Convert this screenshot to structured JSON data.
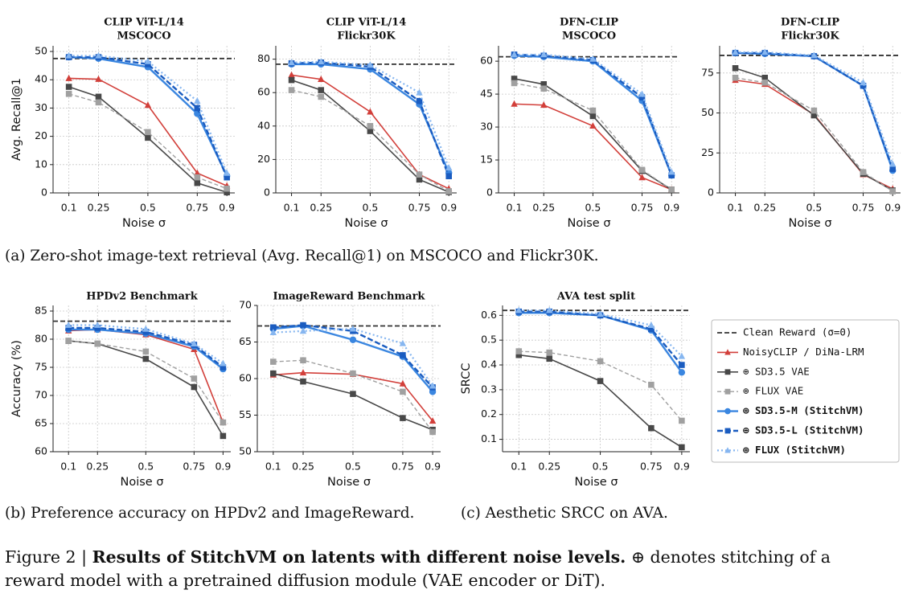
{
  "chart_data": [
    {
      "type": "line",
      "title": "CLIP ViT-L/14",
      "subtitle": "MSCOCO",
      "y_label": "Avg. Recall@1",
      "x_label": "Noise σ",
      "x": [
        0.1,
        0.25,
        0.5,
        0.75,
        0.9
      ],
      "xlim": [
        0.02,
        0.94
      ],
      "xticks": [
        0.1,
        0.25,
        0.5,
        0.75,
        0.9
      ],
      "ylim": [
        0,
        52
      ],
      "yticks": [
        0,
        10,
        20,
        30,
        40,
        50
      ],
      "grid": true,
      "reference": 47.5,
      "series": [
        {
          "values": [
            40.5,
            40.2,
            31,
            7,
            2.5
          ]
        },
        {
          "values": [
            37.5,
            34,
            19.5,
            3.5,
            0.2
          ]
        },
        {
          "values": [
            35,
            32,
            21.5,
            5.5,
            1.5
          ]
        },
        {
          "values": [
            48,
            47.5,
            44.5,
            28,
            6
          ]
        },
        {
          "values": [
            48,
            48,
            45.5,
            30,
            5.5
          ]
        },
        {
          "values": [
            48.5,
            48.5,
            46.5,
            32.5,
            7
          ]
        }
      ]
    },
    {
      "type": "line",
      "title": "CLIP ViT-L/14",
      "subtitle": "Flickr30K",
      "x_label": "Noise σ",
      "x": [
        0.1,
        0.25,
        0.5,
        0.75,
        0.9
      ],
      "xlim": [
        0.02,
        0.94
      ],
      "xticks": [
        0.1,
        0.25,
        0.5,
        0.75,
        0.9
      ],
      "ylim": [
        0,
        88
      ],
      "yticks": [
        0,
        20,
        40,
        60,
        80
      ],
      "grid": true,
      "reference": 77,
      "series": [
        {
          "values": [
            70.5,
            68,
            48.5,
            11,
            2.5
          ]
        },
        {
          "values": [
            67.5,
            61.5,
            37,
            8,
            0.5
          ]
        },
        {
          "values": [
            61.5,
            57.5,
            40,
            11,
            1
          ]
        },
        {
          "values": [
            77,
            77,
            74,
            53,
            12
          ]
        },
        {
          "values": [
            77.5,
            78,
            75.5,
            55,
            10
          ]
        },
        {
          "values": [
            78,
            78.5,
            76.5,
            60,
            15
          ]
        }
      ]
    },
    {
      "type": "line",
      "title": "DFN-CLIP",
      "subtitle": "MSCOCO",
      "x_label": "Noise σ",
      "x": [
        0.1,
        0.25,
        0.5,
        0.75,
        0.9
      ],
      "xlim": [
        0.02,
        0.94
      ],
      "xticks": [
        0.1,
        0.25,
        0.5,
        0.75,
        0.9
      ],
      "ylim": [
        0,
        67
      ],
      "yticks": [
        0,
        15,
        30,
        45,
        60
      ],
      "grid": true,
      "reference": 62,
      "series": [
        {
          "values": [
            40.5,
            40,
            30.5,
            7,
            1.5
          ]
        },
        {
          "values": [
            52,
            49.5,
            35,
            10,
            1.5
          ]
        },
        {
          "values": [
            50,
            47.5,
            37.5,
            10.5,
            1.5
          ]
        },
        {
          "values": [
            62.5,
            62,
            60,
            42,
            8
          ]
        },
        {
          "values": [
            63,
            62.5,
            60.5,
            43.5,
            8
          ]
        },
        {
          "values": [
            63,
            63,
            61,
            45,
            9.5
          ]
        }
      ]
    },
    {
      "type": "line",
      "title": "DFN-CLIP",
      "subtitle": "Flickr30K",
      "x_label": "Noise σ",
      "x": [
        0.1,
        0.25,
        0.5,
        0.75,
        0.9
      ],
      "xlim": [
        0.02,
        0.94
      ],
      "xticks": [
        0.1,
        0.25,
        0.5,
        0.75,
        0.9
      ],
      "ylim": [
        0,
        92
      ],
      "yticks": [
        0,
        25,
        50,
        75
      ],
      "grid": true,
      "reference": 86,
      "series": [
        {
          "values": [
            70.5,
            68,
            49,
            11.5,
            2.5
          ]
        },
        {
          "values": [
            78,
            72,
            48.5,
            12,
            1.5
          ]
        },
        {
          "values": [
            72,
            69,
            51.5,
            13,
            1
          ]
        },
        {
          "values": [
            87.5,
            87,
            85.5,
            67,
            14
          ]
        },
        {
          "values": [
            87.5,
            87.5,
            85.5,
            67,
            15
          ]
        },
        {
          "values": [
            88,
            88,
            86,
            69,
            18
          ]
        }
      ]
    },
    {
      "type": "line",
      "title": "HPDv2 Benchmark",
      "y_label": "Accuracy (%)",
      "x_label": "Noise σ",
      "x": [
        0.1,
        0.25,
        0.5,
        0.75,
        0.9
      ],
      "xlim": [
        0.02,
        0.94
      ],
      "xticks": [
        0.1,
        0.25,
        0.5,
        0.75,
        0.9
      ],
      "ylim": [
        60,
        86
      ],
      "yticks": [
        60,
        65,
        70,
        75,
        80,
        85
      ],
      "grid": true,
      "reference": 83.2,
      "series": [
        {
          "values": [
            81.5,
            81.7,
            80.8,
            78.2,
            65.2
          ]
        },
        {
          "values": [
            79.7,
            79.2,
            76.5,
            71.5,
            62.8
          ]
        },
        {
          "values": [
            79.7,
            79.2,
            77.8,
            73,
            65.2
          ]
        },
        {
          "values": [
            81.7,
            81.7,
            81,
            78.7,
            74.7
          ]
        },
        {
          "values": [
            82,
            82,
            81.3,
            79,
            75
          ]
        },
        {
          "values": [
            82.5,
            82.5,
            81.8,
            79.2,
            75.7
          ]
        }
      ]
    },
    {
      "type": "line",
      "title": "ImageReward Benchmark",
      "x_label": "Noise σ",
      "x": [
        0.1,
        0.25,
        0.5,
        0.75,
        0.9
      ],
      "xlim": [
        0.02,
        0.94
      ],
      "xticks": [
        0.1,
        0.25,
        0.5,
        0.75,
        0.9
      ],
      "ylim": [
        50,
        70
      ],
      "yticks": [
        50,
        55,
        60,
        65,
        70
      ],
      "grid": true,
      "reference": 67.2,
      "series": [
        {
          "values": [
            60.5,
            60.8,
            60.6,
            59.3,
            54.2
          ]
        },
        {
          "values": [
            60.7,
            59.6,
            57.9,
            54.6,
            53
          ]
        },
        {
          "values": [
            62.3,
            62.5,
            60.7,
            58.2,
            52.7
          ]
        },
        {
          "values": [
            66.8,
            67.2,
            65.3,
            63,
            58.2
          ]
        },
        {
          "values": [
            67,
            67.3,
            66.5,
            63.2,
            58.8
          ]
        },
        {
          "values": [
            66.3,
            66.5,
            66.8,
            64.8,
            59
          ]
        }
      ]
    },
    {
      "type": "line",
      "title": "AVA test split",
      "y_label": "SRCC",
      "x_label": "Noise σ",
      "x": [
        0.1,
        0.25,
        0.5,
        0.75,
        0.9
      ],
      "xlim": [
        0.02,
        0.94
      ],
      "xticks": [
        0.1,
        0.25,
        0.5,
        0.75,
        0.9
      ],
      "ylim": [
        0.05,
        0.64
      ],
      "yticks": [
        0.1,
        0.2,
        0.3,
        0.4,
        0.5,
        0.6
      ],
      "grid": true,
      "reference": 0.62,
      "series": [
        {
          "values": [
            null,
            null,
            null,
            null,
            null
          ]
        },
        {
          "values": [
            0.44,
            0.425,
            0.335,
            0.145,
            0.068
          ]
        },
        {
          "values": [
            0.455,
            0.45,
            0.415,
            0.32,
            0.175
          ]
        },
        {
          "values": [
            0.61,
            0.61,
            0.6,
            0.54,
            0.37
          ]
        },
        {
          "values": [
            0.615,
            0.615,
            0.6,
            0.545,
            0.4
          ]
        },
        {
          "values": [
            0.62,
            0.62,
            0.605,
            0.56,
            0.435
          ]
        }
      ]
    }
  ],
  "legend": {
    "reference": {
      "name": "Clean Reward (σ=0)",
      "color": "#333333"
    },
    "series": [
      {
        "name": "NoisyCLIP / DiNa-LRM",
        "color": "#d23f3a"
      },
      {
        "name": "⊕ SD3.5 VAE",
        "color": "#484848"
      },
      {
        "name": "⊕ FLUX VAE",
        "color": "#a0a0a0"
      },
      {
        "name": "⊕ SD3.5-M (StitchVM)",
        "color": "#3a86e0"
      },
      {
        "name": "⊕ SD3.5-L (StitchVM)",
        "color": "#1a5cc0"
      },
      {
        "name": "⊕ FLUX (StitchVM)",
        "color": "#86b6f0"
      }
    ]
  },
  "captions": {
    "a": "(a) Zero-shot image-text retrieval (Avg. Recall@1) on MSCOCO and Flickr30K.",
    "b": "(b) Preference accuracy on HPDv2 and ImageReward.",
    "c": "(c) Aesthetic SRCC on AVA.",
    "figure_label": "Figure 2 |",
    "figure_bold": "Results of StitchVM on latents with different noise levels.",
    "figure_rest": "⊕ denotes stitching of a",
    "figure_line2": "reward model with a pretrained diffusion module (VAE encoder or DiT)."
  }
}
